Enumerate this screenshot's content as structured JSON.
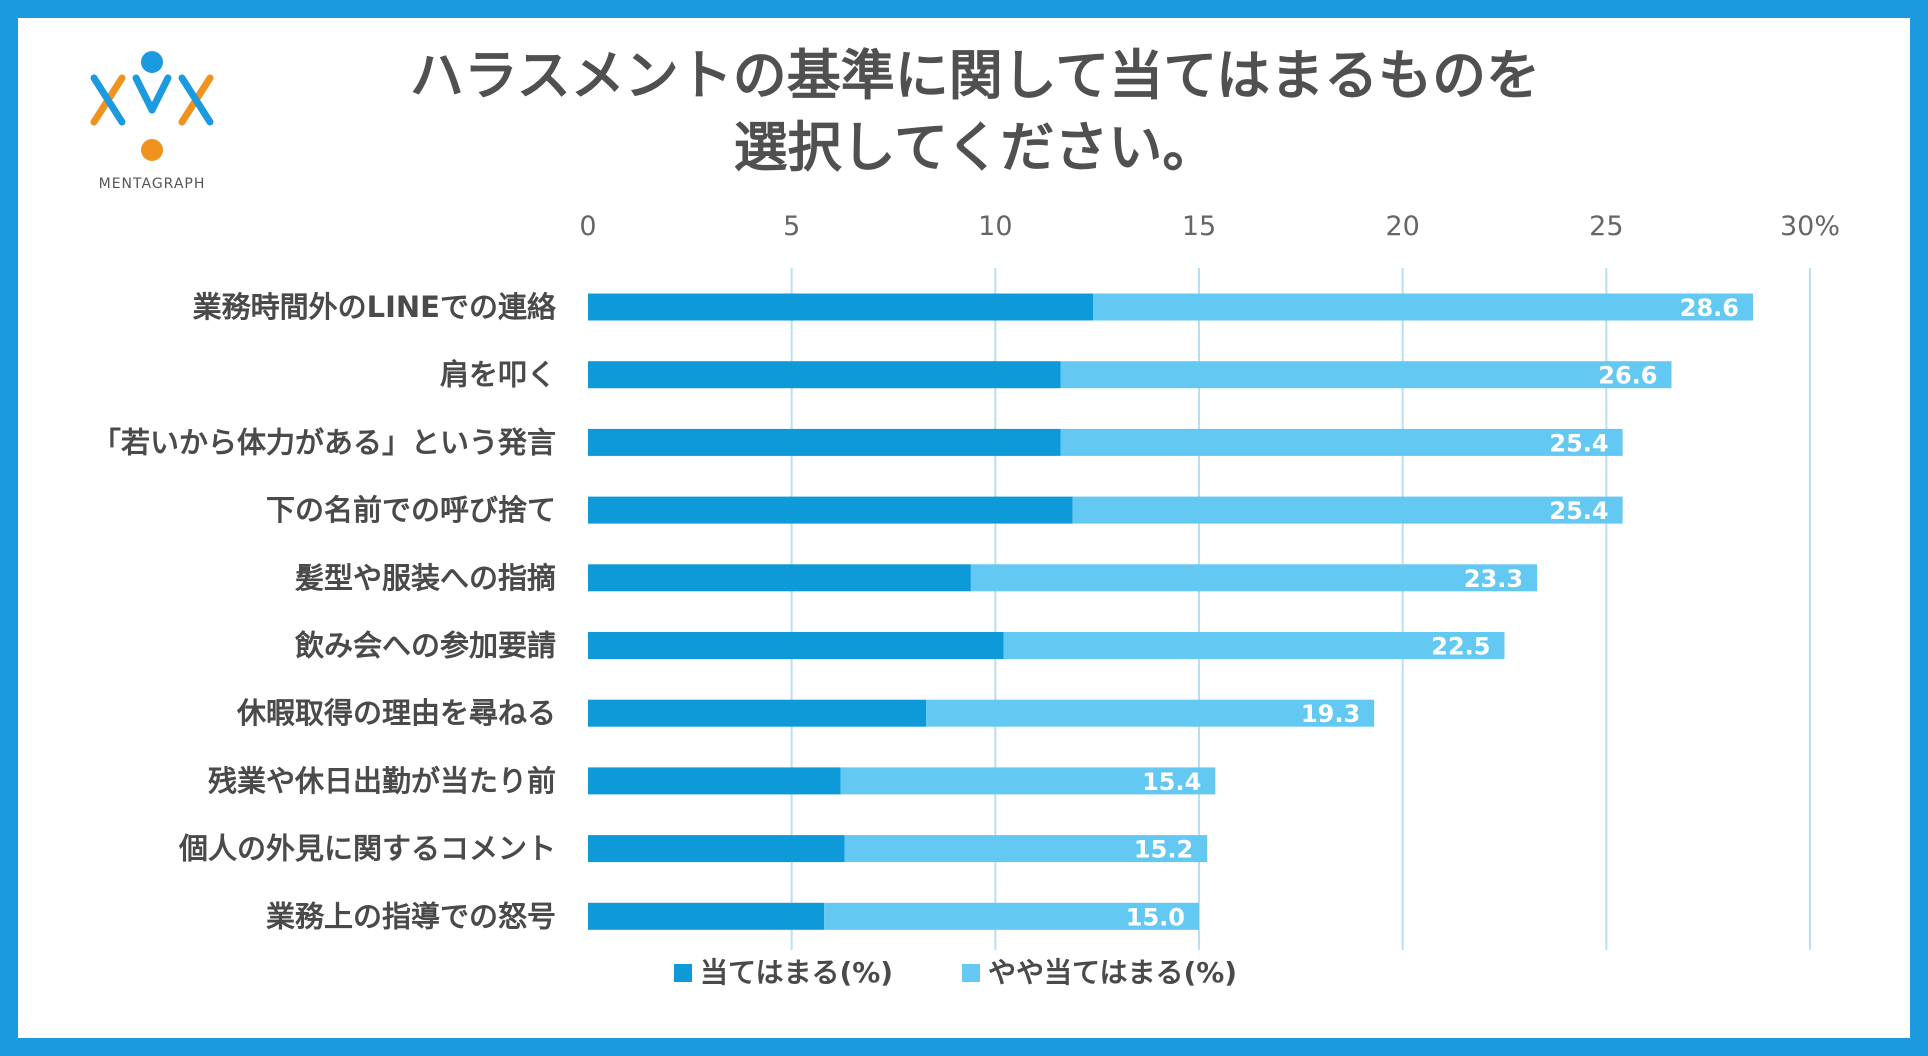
{
  "brand": {
    "name": "MENTAGRAPH",
    "colors": {
      "blue": "#1b9ae0",
      "orange": "#f0931e"
    }
  },
  "title_lines": [
    "ハラスメントの基準に関して当てはまるものを",
    "選択してください。"
  ],
  "chart_data": {
    "type": "bar",
    "orientation": "horizontal",
    "stacked": true,
    "title": "ハラスメントの基準に関して当てはまるものを選択してください。",
    "categories": [
      "業務時間外のLINEでの連絡",
      "肩を叩く",
      "「若いから体力がある」という発言",
      "下の名前での呼び捨て",
      "髪型や服装への指摘",
      "飲み会への参加要請",
      "休暇取得の理由を尋ねる",
      "残業や休日出勤が当たり前",
      "個人の外見に関するコメント",
      "業務上の指導での怒号"
    ],
    "series": [
      {
        "name": "当てはまる(%)",
        "color": "#0e9ad8",
        "values": [
          12.4,
          11.6,
          11.6,
          11.9,
          9.4,
          10.2,
          8.3,
          6.2,
          6.3,
          5.8
        ]
      },
      {
        "name": "やや当てはまる(%)",
        "color": "#63c8f2",
        "values": [
          16.2,
          15.0,
          13.8,
          13.5,
          13.9,
          12.3,
          11.0,
          9.2,
          8.9,
          9.2
        ]
      }
    ],
    "totals": [
      "28.6",
      "26.6",
      "25.4",
      "25.4",
      "23.3",
      "22.5",
      "19.3",
      "15.4",
      "15.2",
      "15.0"
    ],
    "xlim": [
      0,
      30
    ],
    "xticks": [
      "0",
      "5",
      "10",
      "15",
      "20",
      "25",
      "30%"
    ],
    "grid": true,
    "legend": "bottom"
  }
}
